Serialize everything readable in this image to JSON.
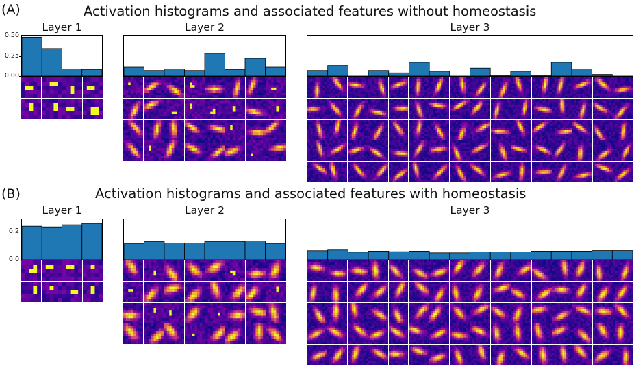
{
  "figure": {
    "a": {
      "label": "(A)",
      "title": "Activation histograms and associated features without homeostasis"
    },
    "b": {
      "label": "(B)",
      "title": "Activation histograms and associated features with homeostasis"
    }
  },
  "colors": {
    "bar": "#1f77b4",
    "feature_low": "#0d0887",
    "feature_mid": "#cc4778",
    "feature_high": "#f0f921"
  },
  "chart_data": [
    {
      "id": "a1",
      "type": "bar",
      "title": "Layer 1",
      "categories": [
        "1",
        "2",
        "3",
        "4"
      ],
      "values": [
        0.48,
        0.34,
        0.09,
        0.08
      ],
      "ylim": [
        0,
        0.5
      ],
      "yticks": [
        {
          "v": 0,
          "t": "0.00"
        },
        {
          "v": 0.25,
          "t": "0.25"
        },
        {
          "v": 0.5,
          "t": "0.50"
        }
      ],
      "feature_grid": {
        "rows": 2,
        "cols": 4
      }
    },
    {
      "id": "a2",
      "type": "bar",
      "title": "Layer 2",
      "categories": [
        "1",
        "2",
        "3",
        "4",
        "5",
        "6",
        "7",
        "8"
      ],
      "values": [
        0.11,
        0.07,
        0.09,
        0.07,
        0.28,
        0.08,
        0.22,
        0.11
      ],
      "ylim": [
        0,
        0.5
      ],
      "yticks": [],
      "feature_grid": {
        "rows": 4,
        "cols": 8
      }
    },
    {
      "id": "a3",
      "type": "bar",
      "title": "Layer 3",
      "categories": [
        "1",
        "2",
        "3",
        "4",
        "5",
        "6",
        "7",
        "8",
        "9",
        "10",
        "11",
        "12",
        "13",
        "14",
        "15",
        "16"
      ],
      "values": [
        0.07,
        0.13,
        0.0,
        0.07,
        0.04,
        0.17,
        0.06,
        0.0,
        0.1,
        0.01,
        0.06,
        0.01,
        0.17,
        0.09,
        0.02,
        0.0
      ],
      "ylim": [
        0,
        0.5
      ],
      "yticks": [],
      "feature_grid": {
        "rows": 5,
        "cols": 16
      }
    },
    {
      "id": "b1",
      "type": "bar",
      "title": "Layer 1",
      "categories": [
        "1",
        "2",
        "3",
        "4"
      ],
      "values": [
        0.24,
        0.235,
        0.25,
        0.26
      ],
      "ylim": [
        0,
        0.29
      ],
      "yticks": [
        {
          "v": 0,
          "t": "0.0"
        },
        {
          "v": 0.2,
          "t": "0.2"
        }
      ],
      "feature_grid": {
        "rows": 2,
        "cols": 4
      }
    },
    {
      "id": "b2",
      "type": "bar",
      "title": "Layer 2",
      "categories": [
        "1",
        "2",
        "3",
        "4",
        "5",
        "6",
        "7",
        "8"
      ],
      "values": [
        0.115,
        0.13,
        0.12,
        0.12,
        0.13,
        0.13,
        0.135,
        0.115
      ],
      "ylim": [
        0,
        0.29
      ],
      "yticks": [],
      "feature_grid": {
        "rows": 4,
        "cols": 8
      }
    },
    {
      "id": "b3",
      "type": "bar",
      "title": "Layer 3",
      "categories": [
        "1",
        "2",
        "3",
        "4",
        "5",
        "6",
        "7",
        "8",
        "9",
        "10",
        "11",
        "12",
        "13",
        "14",
        "15",
        "16"
      ],
      "values": [
        0.065,
        0.07,
        0.055,
        0.062,
        0.058,
        0.062,
        0.05,
        0.05,
        0.057,
        0.057,
        0.057,
        0.062,
        0.062,
        0.062,
        0.066,
        0.066
      ],
      "ylim": [
        0,
        0.29
      ],
      "yticks": [],
      "feature_grid": {
        "rows": 5,
        "cols": 16
      }
    }
  ]
}
